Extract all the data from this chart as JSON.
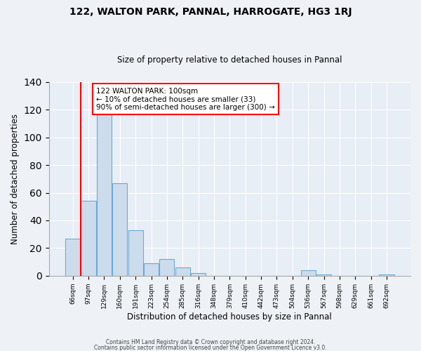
{
  "title1": "122, WALTON PARK, PANNAL, HARROGATE, HG3 1RJ",
  "title2": "Size of property relative to detached houses in Pannal",
  "xlabel": "Distribution of detached houses by size in Pannal",
  "ylabel": "Number of detached properties",
  "bar_labels": [
    "66sqm",
    "97sqm",
    "129sqm",
    "160sqm",
    "191sqm",
    "223sqm",
    "254sqm",
    "285sqm",
    "316sqm",
    "348sqm",
    "379sqm",
    "410sqm",
    "442sqm",
    "473sqm",
    "504sqm",
    "536sqm",
    "567sqm",
    "598sqm",
    "629sqm",
    "661sqm",
    "692sqm"
  ],
  "bar_values": [
    27,
    54,
    118,
    67,
    33,
    9,
    12,
    6,
    2,
    0,
    0,
    0,
    0,
    0,
    0,
    4,
    1,
    0,
    0,
    0,
    1
  ],
  "bar_color": "#ccdcec",
  "bar_edge_color": "#6aaad4",
  "red_line_index": 1,
  "ylim": [
    0,
    140
  ],
  "yticks": [
    0,
    20,
    40,
    60,
    80,
    100,
    120,
    140
  ],
  "annotation_title": "122 WALTON PARK: 100sqm",
  "annotation_line1": "← 10% of detached houses are smaller (33)",
  "annotation_line2": "90% of semi-detached houses are larger (300) →",
  "footer1": "Contains HM Land Registry data © Crown copyright and database right 2024.",
  "footer2": "Contains public sector information licensed under the Open Government Licence v3.0.",
  "background_color": "#eef2f7",
  "plot_bg_color": "#e8eef6"
}
